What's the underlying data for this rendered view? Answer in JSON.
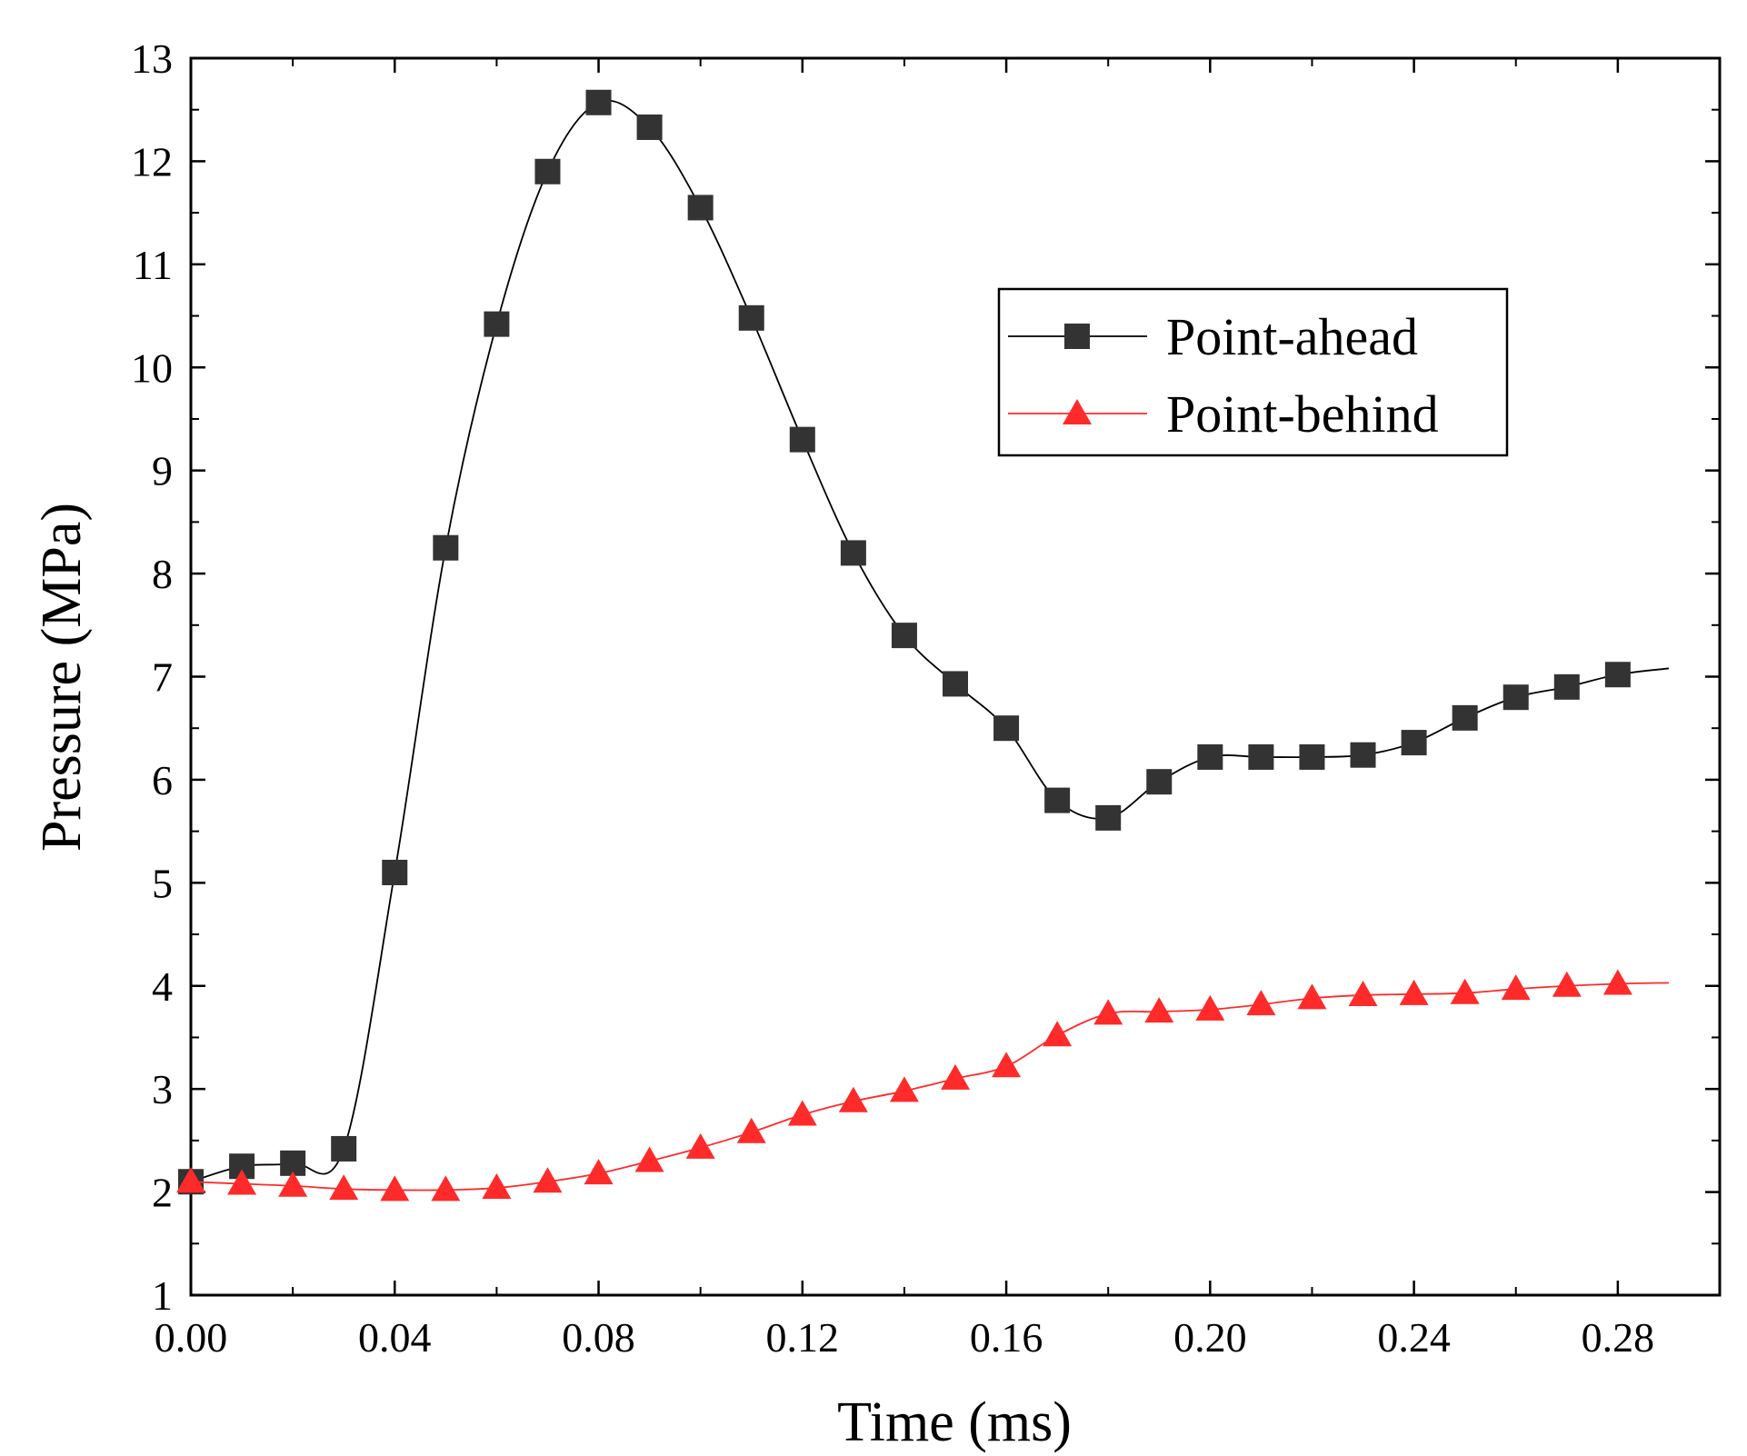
{
  "chart_data": {
    "type": "line",
    "xlabel": "Time (ms)",
    "ylabel": "Pressure (MPa)",
    "xlim": [
      0.0,
      0.3
    ],
    "ylim": [
      1,
      13
    ],
    "x_ticks": [
      "0.00",
      "0.04",
      "0.08",
      "0.12",
      "0.16",
      "0.20",
      "0.24",
      "0.28"
    ],
    "y_ticks": [
      "1",
      "2",
      "3",
      "4",
      "5",
      "6",
      "7",
      "8",
      "9",
      "10",
      "11",
      "12",
      "13"
    ],
    "legend_position": "top-right",
    "x": [
      0.0,
      0.01,
      0.02,
      0.03,
      0.04,
      0.05,
      0.06,
      0.07,
      0.08,
      0.09,
      0.1,
      0.11,
      0.12,
      0.13,
      0.14,
      0.15,
      0.16,
      0.17,
      0.18,
      0.19,
      0.2,
      0.21,
      0.22,
      0.23,
      0.24,
      0.25,
      0.26,
      0.27,
      0.28
    ],
    "series": [
      {
        "name": "Point-ahead",
        "color": "#333333",
        "line_color": "#000000",
        "marker": "square",
        "values": [
          2.1,
          2.25,
          2.28,
          2.42,
          5.1,
          8.25,
          10.42,
          11.9,
          12.57,
          12.33,
          11.55,
          10.48,
          9.3,
          8.2,
          7.4,
          6.93,
          6.5,
          5.8,
          5.63,
          5.98,
          6.22,
          6.22,
          6.22,
          6.24,
          6.36,
          6.6,
          6.8,
          6.9,
          7.02
        ],
        "line_end": [
          0.29,
          7.08
        ]
      },
      {
        "name": "Point-behind",
        "color": "#ff2a2a",
        "line_color": "#ff2a2a",
        "marker": "triangle",
        "values": [
          2.1,
          2.08,
          2.06,
          2.03,
          2.02,
          2.02,
          2.04,
          2.1,
          2.18,
          2.3,
          2.43,
          2.58,
          2.75,
          2.88,
          2.98,
          3.1,
          3.22,
          3.52,
          3.73,
          3.75,
          3.77,
          3.82,
          3.88,
          3.91,
          3.92,
          3.93,
          3.97,
          4.0,
          4.02
        ],
        "line_end": [
          0.29,
          4.03
        ]
      }
    ]
  }
}
